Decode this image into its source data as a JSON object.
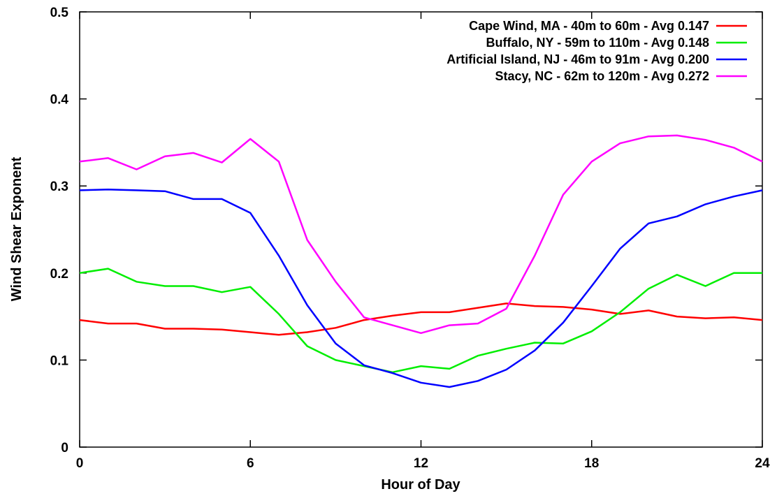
{
  "chart_data": {
    "type": "line",
    "title": "",
    "xlabel": "Hour of Day",
    "ylabel": "Wind Shear Exponent",
    "xlim": [
      0,
      24
    ],
    "ylim": [
      0,
      0.5
    ],
    "xticks": [
      0,
      6,
      12,
      18,
      24
    ],
    "xtick_labels": [
      "0",
      "6",
      "12",
      "18",
      "24"
    ],
    "yticks": [
      0,
      0.1,
      0.2,
      0.3,
      0.4,
      0.5
    ],
    "ytick_labels": [
      "0",
      "0.1",
      "0.2",
      "0.3",
      "0.4",
      "0.5"
    ],
    "grid": false,
    "legend_position": "top-right",
    "x": [
      0,
      1,
      2,
      3,
      4,
      5,
      6,
      7,
      8,
      9,
      10,
      11,
      12,
      13,
      14,
      15,
      16,
      17,
      18,
      19,
      20,
      21,
      22,
      23,
      24
    ],
    "series": [
      {
        "name": "Cape Wind, MA - 40m to 60m - Avg 0.147",
        "color": "#ff0000",
        "values": [
          0.146,
          0.142,
          0.142,
          0.136,
          0.136,
          0.135,
          0.132,
          0.129,
          0.132,
          0.137,
          0.146,
          0.151,
          0.155,
          0.155,
          0.16,
          0.165,
          0.162,
          0.161,
          0.158,
          0.153,
          0.157,
          0.15,
          0.148,
          0.149,
          0.146
        ]
      },
      {
        "name": "Buffalo, NY - 59m to 110m - Avg 0.148",
        "color": "#00ee00",
        "values": [
          0.2,
          0.205,
          0.19,
          0.185,
          0.185,
          0.178,
          0.184,
          0.153,
          0.116,
          0.1,
          0.093,
          0.086,
          0.093,
          0.09,
          0.105,
          0.113,
          0.12,
          0.119,
          0.133,
          0.155,
          0.182,
          0.198,
          0.185,
          0.2,
          0.2
        ]
      },
      {
        "name": "Artificial Island, NJ - 46m to 91m - Avg 0.200",
        "color": "#0000ff",
        "values": [
          0.295,
          0.296,
          0.295,
          0.294,
          0.285,
          0.285,
          0.269,
          0.22,
          0.163,
          0.119,
          0.094,
          0.085,
          0.074,
          0.069,
          0.076,
          0.089,
          0.111,
          0.143,
          0.185,
          0.228,
          0.257,
          0.265,
          0.279,
          0.288,
          0.295
        ]
      },
      {
        "name": "Stacy, NC - 62m to 120m - Avg 0.272",
        "color": "#ff00ff",
        "values": [
          0.328,
          0.332,
          0.319,
          0.334,
          0.338,
          0.327,
          0.354,
          0.328,
          0.238,
          0.19,
          0.149,
          0.14,
          0.131,
          0.14,
          0.142,
          0.159,
          0.22,
          0.29,
          0.328,
          0.349,
          0.357,
          0.358,
          0.353,
          0.344,
          0.328
        ]
      }
    ]
  }
}
